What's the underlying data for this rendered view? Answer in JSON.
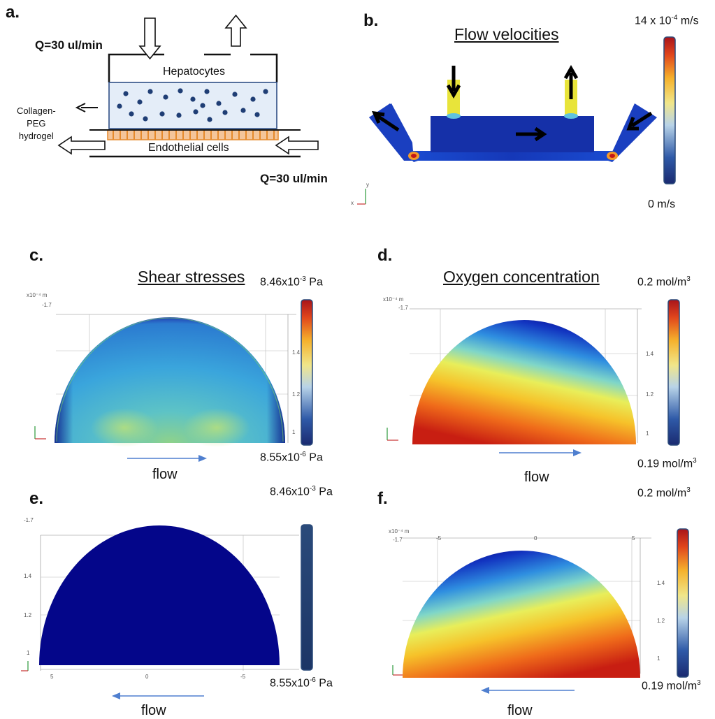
{
  "panel_a": {
    "letter": "a.",
    "q_top": "Q=30 ul/min",
    "q_bottom": "Q=30 ul/min",
    "hepatocytes": "Hepatocytes",
    "endothelial": "Endothelial cells",
    "hydrogel_lines": [
      "Collagen-",
      "PEG",
      "hydrogel"
    ]
  },
  "panel_b": {
    "letter": "b.",
    "title": "Flow velocities",
    "scale_max": "14 x 10",
    "scale_max_exp": "-4",
    "scale_max_unit": " m/s",
    "scale_min": "0 m/s",
    "axis_y": "y",
    "axis_x": "x"
  },
  "panel_c": {
    "letter": "c.",
    "title": "Shear stresses",
    "scale_max_base": "8.46x10",
    "scale_max_exp": "-3",
    "scale_max_unit": " Pa",
    "scale_min_base": "8.55x10",
    "scale_min_exp": "-6",
    "scale_min_unit": " Pa",
    "flow": "flow",
    "axis_unit": "x10⁻⁴ m",
    "y_top": "-1.7",
    "y_ticks": [
      "1.4",
      "1.2",
      "1"
    ]
  },
  "panel_d": {
    "letter": "d.",
    "title": "Oxygen concentration",
    "scale_max_base": "0.2 mol/m",
    "scale_max_exp": "3",
    "scale_min_base": "0.19 mol/m",
    "scale_min_exp": "3",
    "flow": "flow",
    "axis_unit": "x10⁻⁴ m",
    "y_top": "-1.7",
    "y_ticks": [
      "1.4",
      "1.2",
      "1"
    ]
  },
  "panel_e": {
    "letter": "e.",
    "scale_max_base": "8.46x10",
    "scale_max_exp": "-3",
    "scale_max_unit": " Pa",
    "scale_min_base": "8.55x10",
    "scale_min_exp": "-6",
    "scale_min_unit": " Pa",
    "flow": "flow",
    "y_top": "-1.7",
    "y_ticks": [
      "1.4",
      "1.2",
      "1"
    ],
    "x_ticks": [
      "5",
      "0",
      "-5"
    ]
  },
  "panel_f": {
    "letter": "f.",
    "scale_max_base": "0.2 mol/m",
    "scale_max_exp": "3",
    "scale_min_base": "0.19 mol/m",
    "scale_min_exp": "3",
    "flow": "flow",
    "axis_unit": "x10⁻⁴ m",
    "y_top": "-1.7",
    "x_ticks": [
      "-5",
      "0",
      "5"
    ],
    "y_ticks": [
      "1.4",
      "1.2",
      "1"
    ]
  },
  "colors": {
    "jet_dark_blue": "#00007f",
    "jet_red": "#b30000",
    "hydrogel_fill": "#e4edf8",
    "cell_dot": "#1f3e75",
    "endothelial": "#e58a2c",
    "flow_arrow": "#4f7fcf"
  }
}
